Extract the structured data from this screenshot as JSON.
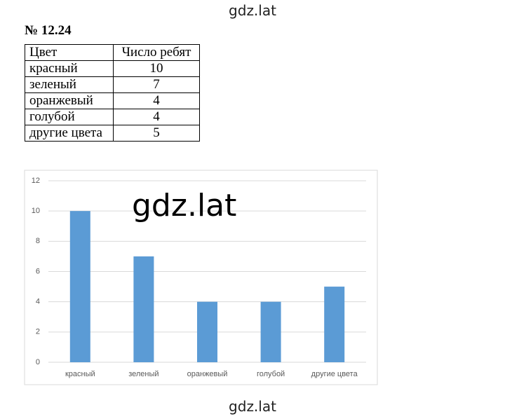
{
  "watermarks": [
    "gdz.lat",
    "gdz.lat",
    "gdz.lat"
  ],
  "problem": {
    "title": "№ 12.24"
  },
  "table": {
    "header": [
      "Цвет",
      "Число ребят"
    ],
    "rows": [
      [
        "красный",
        "10"
      ],
      [
        "зеленый",
        "7"
      ],
      [
        "оранжевый",
        "4"
      ],
      [
        "голубой",
        "4"
      ],
      [
        "другие цвета",
        "5"
      ]
    ]
  },
  "chart_data": {
    "type": "bar",
    "categories": [
      "красный",
      "зеленый",
      "оранжевый",
      "голубой",
      "другие цвета"
    ],
    "values": [
      10,
      7,
      4,
      4,
      5
    ],
    "color": "#5b9bd5",
    "ylim": [
      0,
      12
    ],
    "yticks": [
      0,
      2,
      4,
      6,
      8,
      10,
      12
    ],
    "grid": true
  }
}
